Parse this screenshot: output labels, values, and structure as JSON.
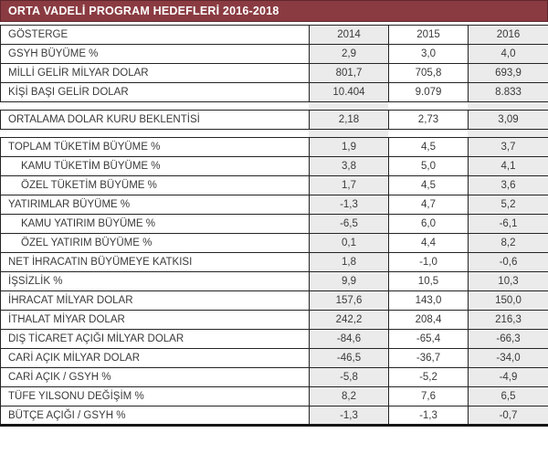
{
  "colors": {
    "title_bg": "#8a3b41",
    "title_border": "#5f272d",
    "title_text": "#ffffff",
    "shaded_column_bg": "#ebebeb",
    "grid_border": "#242424",
    "body_text": "#3a3a3a",
    "row_bg": "#ffffff"
  },
  "chart_data": {
    "type": "table",
    "title": "ORTA VADELİ PROGRAM HEDEFLERİ 2016-2018",
    "columns": [
      "GÖSTERGE",
      "2014",
      "2015",
      "2016"
    ],
    "layout_hints": {
      "shaded_columns": [
        "2014",
        "2016"
      ],
      "sections_separated_by_gaps": true,
      "thick_bottom_border": true
    },
    "sections": [
      {
        "has_column_header": true,
        "rows": [
          {
            "label": "GSYH BÜYÜME %",
            "indent": false,
            "values": [
              "2,9",
              "3,0",
              "4,0"
            ]
          },
          {
            "label": "MİLLİ GELİR MİLYAR DOLAR",
            "indent": false,
            "values": [
              "801,7",
              "705,8",
              "693,9"
            ]
          },
          {
            "label": "KİŞİ BAŞI GELİR DOLAR",
            "indent": false,
            "values": [
              "10.404",
              "9.079",
              "8.833"
            ]
          }
        ]
      },
      {
        "has_column_header": false,
        "rows": [
          {
            "label": "ORTALAMA DOLAR KURU BEKLENTİSİ",
            "indent": false,
            "values": [
              "2,18",
              "2,73",
              "3,09"
            ]
          }
        ]
      },
      {
        "has_column_header": false,
        "rows": [
          {
            "label": "TOPLAM TÜKETİM BÜYÜME %",
            "indent": false,
            "values": [
              "1,9",
              "4,5",
              "3,7"
            ]
          },
          {
            "label": "KAMU TÜKETİM BÜYÜME %",
            "indent": true,
            "values": [
              "3,8",
              "5,0",
              "4,1"
            ]
          },
          {
            "label": "ÖZEL TÜKETİM BÜYÜME %",
            "indent": true,
            "values": [
              "1,7",
              "4,5",
              "3,6"
            ]
          },
          {
            "label": "YATIRIMLAR BÜYÜME %",
            "indent": false,
            "values": [
              "-1,3",
              "4,7",
              "5,2"
            ]
          },
          {
            "label": "KAMU YATIRIM BÜYÜME %",
            "indent": true,
            "values": [
              "-6,5",
              "6,0",
              "-6,1"
            ]
          },
          {
            "label": "ÖZEL YATIRIM BÜYÜME %",
            "indent": true,
            "values": [
              "0,1",
              "4,4",
              "8,2"
            ]
          },
          {
            "label": "NET İHRACATIN BÜYÜMEYE KATKISI",
            "indent": false,
            "values": [
              "1,8",
              "-1,0",
              "-0,6"
            ]
          },
          {
            "label": "İŞSİZLİK %",
            "indent": false,
            "values": [
              "9,9",
              "10,5",
              "10,3"
            ]
          },
          {
            "label": "İHRACAT MİLYAR DOLAR",
            "indent": false,
            "values": [
              "157,6",
              "143,0",
              "150,0"
            ]
          },
          {
            "label": "İTHALAT MİYAR DOLAR",
            "indent": false,
            "values": [
              "242,2",
              "208,4",
              "216,3"
            ]
          },
          {
            "label": "DIŞ TİCARET AÇIĞI MİLYAR DOLAR",
            "indent": false,
            "values": [
              "-84,6",
              "-65,4",
              "-66,3"
            ]
          },
          {
            "label": "CARİ AÇIK MİLYAR DOLAR",
            "indent": false,
            "values": [
              "-46,5",
              "-36,7",
              "-34,0"
            ]
          },
          {
            "label": "CARİ AÇIK / GSYH %",
            "indent": false,
            "values": [
              "-5,8",
              "-5,2",
              "-4,9"
            ]
          },
          {
            "label": "TÜFE YILSONU DEĞİŞİM %",
            "indent": false,
            "values": [
              "8,2",
              "7,6",
              "6,5"
            ]
          },
          {
            "label": "BÜTÇE AÇIĞI / GSYH %",
            "indent": false,
            "values": [
              "-1,3",
              "-1,3",
              "-0,7"
            ]
          }
        ]
      }
    ]
  }
}
